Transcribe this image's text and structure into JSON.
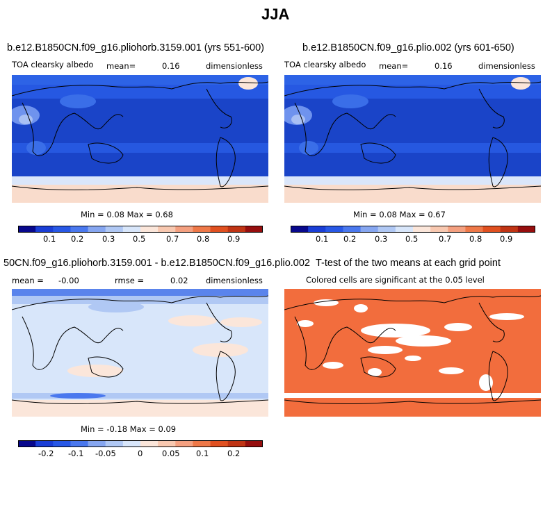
{
  "figure_title": "JJA",
  "panels": [
    {
      "title": "b.e12.B1850CN.f09_g16.pliohorb.3159.001 (yrs 551-600)",
      "var_label": "TOA clearsky albedo",
      "mean_label": "mean=",
      "mean_value": "0.16",
      "units": "dimensionless",
      "minmax": "Min =   0.08 Max =    0.68"
    },
    {
      "title": "b.e12.B1850CN.f09_g16.plio.002 (yrs 601-650)",
      "var_label": "TOA clearsky albedo",
      "mean_label": "mean=",
      "mean_value": "0.16",
      "units": "dimensionless",
      "minmax": "Min =   0.08 Max =    0.67"
    },
    {
      "title": "50CN.f09_g16.pliohorb.3159.001 - b.e12.B1850CN.f09_g16.plio.002",
      "mean_label": "mean =",
      "mean_value": "-0.00",
      "rmse_label": "rmse =",
      "rmse_value": "0.02",
      "units": "dimensionless",
      "minmax": "Min =  -0.18 Max =    0.09"
    },
    {
      "title": "T-test of the two means at each grid point",
      "subtitle": "Colored cells are significant at the 0.05 level"
    }
  ],
  "chart_data": [
    {
      "type": "heatmap",
      "title": "b.e12.B1850CN.f09_g16.pliohorb.3159.001 (yrs 551-600)",
      "variable": "TOA clearsky albedo",
      "units": "dimensionless",
      "season": "JJA",
      "mean": 0.16,
      "min": 0.08,
      "max": 0.68,
      "colorbar": {
        "ticks": [
          "0.1",
          "0.2",
          "0.3",
          "0.5",
          "0.7",
          "0.8",
          "0.9"
        ],
        "colors": [
          "#08088c",
          "#1a3ed6",
          "#2858e6",
          "#4a78ee",
          "#86a6f0",
          "#b0c8f4",
          "#d8e6fa",
          "#fbe6da",
          "#f8c8b0",
          "#f4a080",
          "#ee7848",
          "#e05020",
          "#c03414",
          "#960e0e"
        ]
      }
    },
    {
      "type": "heatmap",
      "title": "b.e12.B1850CN.f09_g16.plio.002 (yrs 601-650)",
      "variable": "TOA clearsky albedo",
      "units": "dimensionless",
      "season": "JJA",
      "mean": 0.16,
      "min": 0.08,
      "max": 0.67,
      "colorbar": {
        "ticks": [
          "0.1",
          "0.2",
          "0.3",
          "0.5",
          "0.7",
          "0.8",
          "0.9"
        ],
        "colors": [
          "#08088c",
          "#1a3ed6",
          "#2858e6",
          "#4a78ee",
          "#86a6f0",
          "#b0c8f4",
          "#d8e6fa",
          "#fbe6da",
          "#f8c8b0",
          "#f4a080",
          "#ee7848",
          "#e05020",
          "#c03414",
          "#960e0e"
        ]
      }
    },
    {
      "type": "heatmap",
      "title": "50CN.f09_g16.pliohorb.3159.001 - b.e12.B1850CN.f09_g16.plio.002",
      "units": "dimensionless",
      "season": "JJA",
      "mean": -0.0,
      "rmse": 0.02,
      "min": -0.18,
      "max": 0.09,
      "colorbar": {
        "ticks": [
          "-0.2",
          "-0.1",
          "-0.05",
          "0",
          "0.05",
          "0.1",
          "0.2"
        ],
        "colors": [
          "#08088c",
          "#1a3ed6",
          "#2858e6",
          "#4a78ee",
          "#86a6f0",
          "#b0c8f4",
          "#d8e6fa",
          "#fbe6da",
          "#f8c8b0",
          "#f4a080",
          "#ee7848",
          "#e05020",
          "#c03414",
          "#960e0e"
        ]
      }
    },
    {
      "type": "heatmap",
      "title": "T-test of the two means at each grid point",
      "subtitle": "Colored cells are significant at the 0.05 level",
      "significance_level": 0.05,
      "significant_color": "#f26d3d",
      "not_significant_color": "#ffffff"
    }
  ]
}
